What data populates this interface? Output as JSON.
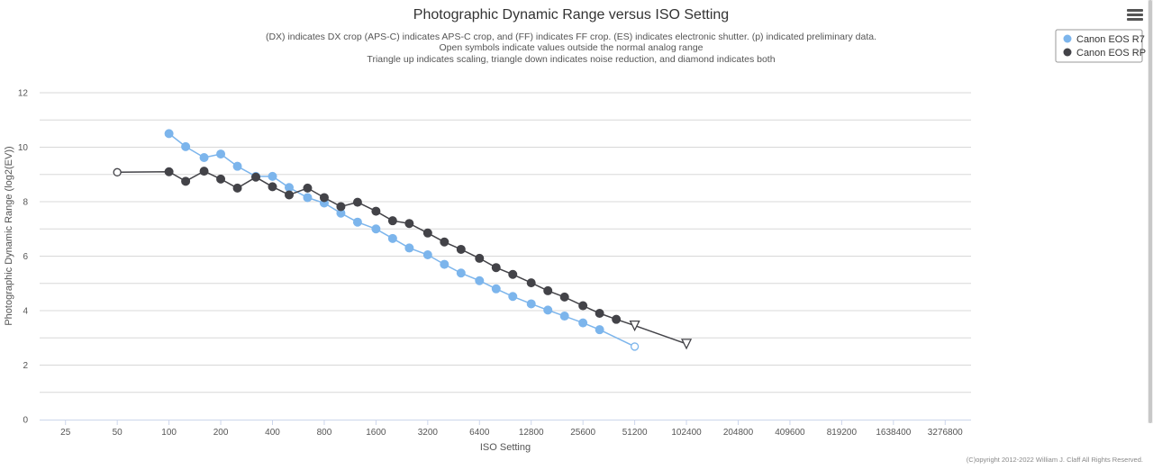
{
  "menu": {
    "icon": "hamburger-menu-icon"
  },
  "chart_data": {
    "type": "line",
    "title": "Photographic Dynamic Range versus ISO Setting",
    "subtitle": [
      "(DX) indicates DX crop (APS-C) indicates APS-C crop, and (FF) indicates FF crop. (ES) indicates electronic shutter. (p) indicated preliminary data.",
      "Open symbols indicate values outside the normal analog range",
      "Triangle up indicates scaling, triangle down indicates noise reduction, and diamond indicates both"
    ],
    "xlabel": "ISO Setting",
    "ylabel": "Photographic Dynamic Range (log2(EV))",
    "x_scale": "log2",
    "xlim": [
      25,
      3276800
    ],
    "ylim": [
      0,
      12
    ],
    "x_ticks": [
      "25",
      "50",
      "100",
      "200",
      "400",
      "800",
      "1600",
      "3200",
      "6400",
      "12800",
      "25600",
      "51200",
      "102400",
      "204800",
      "409600",
      "819200",
      "1638400",
      "3276800"
    ],
    "y_ticks": [
      "0",
      "2",
      "4",
      "6",
      "8",
      "10",
      "12"
    ],
    "grid": true,
    "legend_position": "top-right",
    "copyright": "(C)opyright 2012-2022 William J. Claff All Rights Reserved.",
    "series": [
      {
        "name": "Canon EOS R7",
        "color": "#7cb5ec",
        "points": [
          {
            "x": 100,
            "y": 10.5,
            "marker": "circle"
          },
          {
            "x": 125,
            "y": 10.02,
            "marker": "circle"
          },
          {
            "x": 160,
            "y": 9.62,
            "marker": "circle"
          },
          {
            "x": 200,
            "y": 9.75,
            "marker": "circle"
          },
          {
            "x": 250,
            "y": 9.3,
            "marker": "circle"
          },
          {
            "x": 320,
            "y": 8.93,
            "marker": "circle"
          },
          {
            "x": 400,
            "y": 8.93,
            "marker": "circle"
          },
          {
            "x": 500,
            "y": 8.52,
            "marker": "circle"
          },
          {
            "x": 640,
            "y": 8.15,
            "marker": "circle"
          },
          {
            "x": 800,
            "y": 7.95,
            "marker": "circle"
          },
          {
            "x": 1000,
            "y": 7.58,
            "marker": "circle"
          },
          {
            "x": 1250,
            "y": 7.25,
            "marker": "circle"
          },
          {
            "x": 1600,
            "y": 7.0,
            "marker": "circle"
          },
          {
            "x": 2000,
            "y": 6.65,
            "marker": "circle"
          },
          {
            "x": 2500,
            "y": 6.3,
            "marker": "circle"
          },
          {
            "x": 3200,
            "y": 6.05,
            "marker": "circle"
          },
          {
            "x": 4000,
            "y": 5.7,
            "marker": "circle"
          },
          {
            "x": 5000,
            "y": 5.38,
            "marker": "circle"
          },
          {
            "x": 6400,
            "y": 5.1,
            "marker": "circle"
          },
          {
            "x": 8000,
            "y": 4.8,
            "marker": "circle"
          },
          {
            "x": 10000,
            "y": 4.52,
            "marker": "circle"
          },
          {
            "x": 12800,
            "y": 4.25,
            "marker": "circle"
          },
          {
            "x": 16000,
            "y": 4.02,
            "marker": "circle"
          },
          {
            "x": 20000,
            "y": 3.8,
            "marker": "circle"
          },
          {
            "x": 25600,
            "y": 3.55,
            "marker": "circle"
          },
          {
            "x": 32000,
            "y": 3.3,
            "marker": "circle"
          },
          {
            "x": 51200,
            "y": 2.68,
            "marker": "circle-open"
          }
        ]
      },
      {
        "name": "Canon EOS RP",
        "color": "#434348",
        "points": [
          {
            "x": 50,
            "y": 9.08,
            "marker": "circle-open"
          },
          {
            "x": 100,
            "y": 9.1,
            "marker": "circle"
          },
          {
            "x": 125,
            "y": 8.75,
            "marker": "circle"
          },
          {
            "x": 160,
            "y": 9.12,
            "marker": "circle"
          },
          {
            "x": 200,
            "y": 8.83,
            "marker": "circle"
          },
          {
            "x": 250,
            "y": 8.5,
            "marker": "circle"
          },
          {
            "x": 320,
            "y": 8.9,
            "marker": "circle"
          },
          {
            "x": 400,
            "y": 8.55,
            "marker": "circle"
          },
          {
            "x": 500,
            "y": 8.25,
            "marker": "circle"
          },
          {
            "x": 640,
            "y": 8.5,
            "marker": "circle"
          },
          {
            "x": 800,
            "y": 8.15,
            "marker": "circle"
          },
          {
            "x": 1000,
            "y": 7.82,
            "marker": "circle"
          },
          {
            "x": 1250,
            "y": 7.98,
            "marker": "circle"
          },
          {
            "x": 1600,
            "y": 7.65,
            "marker": "circle"
          },
          {
            "x": 2000,
            "y": 7.3,
            "marker": "circle"
          },
          {
            "x": 2500,
            "y": 7.2,
            "marker": "circle"
          },
          {
            "x": 3200,
            "y": 6.85,
            "marker": "circle"
          },
          {
            "x": 4000,
            "y": 6.52,
            "marker": "circle"
          },
          {
            "x": 5000,
            "y": 6.25,
            "marker": "circle"
          },
          {
            "x": 6400,
            "y": 5.92,
            "marker": "circle"
          },
          {
            "x": 8000,
            "y": 5.58,
            "marker": "circle"
          },
          {
            "x": 10000,
            "y": 5.33,
            "marker": "circle"
          },
          {
            "x": 12800,
            "y": 5.02,
            "marker": "circle"
          },
          {
            "x": 16000,
            "y": 4.73,
            "marker": "circle"
          },
          {
            "x": 20000,
            "y": 4.5,
            "marker": "circle"
          },
          {
            "x": 25600,
            "y": 4.18,
            "marker": "circle"
          },
          {
            "x": 32000,
            "y": 3.9,
            "marker": "circle"
          },
          {
            "x": 40000,
            "y": 3.68,
            "marker": "circle"
          },
          {
            "x": 51200,
            "y": 3.45,
            "marker": "triangle-down-open"
          },
          {
            "x": 102400,
            "y": 2.78,
            "marker": "triangle-down-open"
          }
        ]
      }
    ]
  }
}
